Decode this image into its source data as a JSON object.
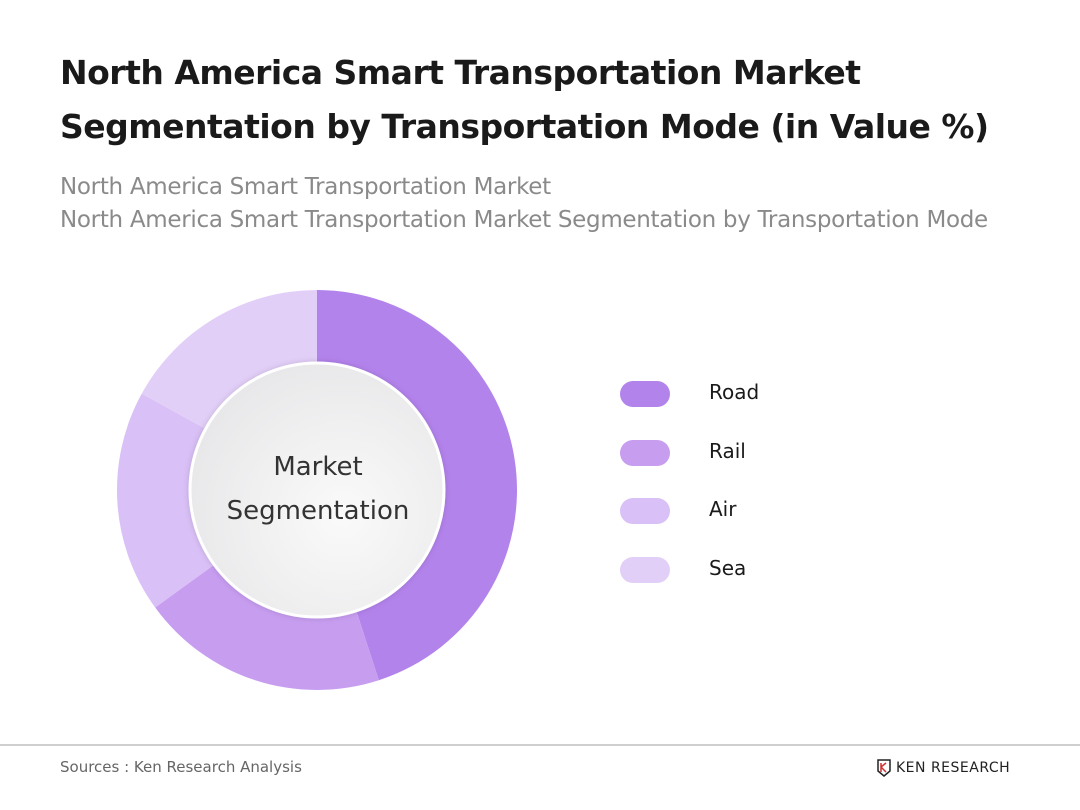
{
  "title": "North America Smart Transportation Market Segmentation by Transportation Mode (in Value %)",
  "subtitles": [
    "North America Smart Transportation Market",
    "North America Smart Transportation Market Segmentation by Transportation Mode"
  ],
  "chart_data": {
    "type": "pie",
    "variant": "donut",
    "center_label": [
      "Market",
      "Segmentation"
    ],
    "categories": [
      "Road",
      "Rail",
      "Air",
      "Sea"
    ],
    "values": [
      45,
      20,
      18,
      17
    ],
    "colors": [
      "#b383ec",
      "#c79df0",
      "#d9c0f6",
      "#e2cff8"
    ],
    "legend_position": "right"
  },
  "footer": {
    "source": "Sources : Ken Research Analysis",
    "logo_text": "KEN RESEARCH"
  }
}
